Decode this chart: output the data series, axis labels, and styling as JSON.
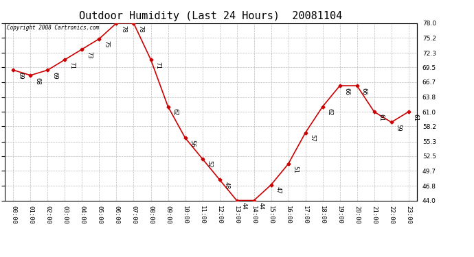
{
  "title": "Outdoor Humidity (Last 24 Hours)  20081104",
  "copyright_text": "Copyright 2008 Cartronics.com",
  "hours": [
    "00:00",
    "01:00",
    "02:00",
    "03:00",
    "04:00",
    "05:00",
    "06:00",
    "07:00",
    "08:00",
    "09:00",
    "10:00",
    "11:00",
    "12:00",
    "13:00",
    "14:00",
    "15:00",
    "16:00",
    "17:00",
    "18:00",
    "19:00",
    "20:00",
    "21:00",
    "22:00",
    "23:00"
  ],
  "values": [
    69,
    68,
    69,
    71,
    73,
    75,
    78,
    78,
    71,
    62,
    56,
    52,
    48,
    44,
    44,
    47,
    51,
    57,
    62,
    66,
    66,
    61,
    59,
    61
  ],
  "line_color": "#cc0000",
  "bg_color": "#ffffff",
  "grid_color": "#bbbbbb",
  "ylim_min": 44.0,
  "ylim_max": 78.0,
  "yticks": [
    44.0,
    46.8,
    49.7,
    52.5,
    55.3,
    58.2,
    61.0,
    63.8,
    66.7,
    69.5,
    72.3,
    75.2,
    78.0
  ],
  "title_fontsize": 11,
  "tick_fontsize": 6.5,
  "annotation_fontsize": 6.5
}
